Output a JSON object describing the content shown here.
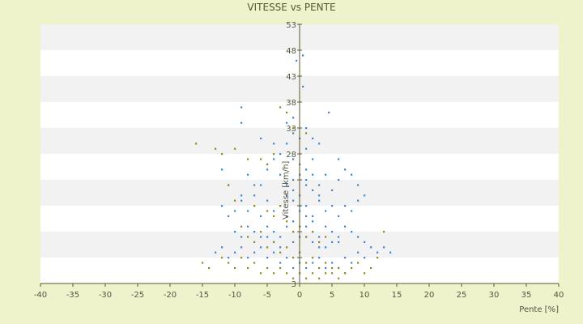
{
  "chart_data": {
    "type": "scatter",
    "title": "VITESSE vs PENTE",
    "xlabel": "Pente [%]",
    "ylabel": "Vitesse [km/h]",
    "xlim": [
      -40,
      40
    ],
    "ylim": [
      3,
      53
    ],
    "x_ticks": [
      -40,
      -35,
      -30,
      -25,
      -20,
      -15,
      -10,
      -5,
      0,
      5,
      10,
      15,
      20,
      25,
      30,
      35,
      40
    ],
    "y_ticks": [
      3,
      8,
      13,
      18,
      23,
      28,
      33,
      38,
      43,
      48,
      53
    ],
    "y_tick_labels": [
      "3",
      "",
      "",
      "",
      "",
      "28",
      "33",
      "38",
      "43",
      "48",
      "53"
    ],
    "grid": "horizontal-bands",
    "legend": "none",
    "colors": {
      "background": "#eef3cc",
      "plot_band_light": "#ffffff",
      "plot_band_dark": "#f2f2f2",
      "axis": "#5a5a2a",
      "series_blue": "#3a87d0",
      "series_olive": "#8c8c1a"
    },
    "series": [
      {
        "color": "#3a87d0",
        "points": [
          [
            -0.5,
            46
          ],
          [
            0.5,
            47
          ],
          [
            0.5,
            41
          ],
          [
            -9,
            37
          ],
          [
            -9,
            34
          ],
          [
            4.5,
            36
          ],
          [
            1,
            29
          ],
          [
            0,
            31
          ],
          [
            -1,
            32
          ],
          [
            -2,
            30
          ],
          [
            2,
            27
          ],
          [
            -3,
            28
          ],
          [
            -6,
            31
          ],
          [
            -4,
            27
          ],
          [
            -12,
            25
          ],
          [
            -11,
            22
          ],
          [
            -8,
            24
          ],
          [
            -7,
            20
          ],
          [
            -6,
            22
          ],
          [
            -5,
            25
          ],
          [
            -3,
            24
          ],
          [
            -2,
            22
          ],
          [
            -1,
            21
          ],
          [
            0,
            20
          ],
          [
            1,
            23
          ],
          [
            2,
            21
          ],
          [
            3,
            22
          ],
          [
            4,
            24
          ],
          [
            5,
            21
          ],
          [
            6,
            23
          ],
          [
            8,
            24
          ],
          [
            9,
            22
          ],
          [
            -12,
            18
          ],
          [
            -11,
            16
          ],
          [
            -10,
            17
          ],
          [
            -9,
            19
          ],
          [
            -8,
            17
          ],
          [
            -7,
            18
          ],
          [
            -6,
            16
          ],
          [
            -5,
            19
          ],
          [
            -4,
            17
          ],
          [
            -3,
            18
          ],
          [
            -2,
            16
          ],
          [
            -1,
            19
          ],
          [
            0,
            17
          ],
          [
            1,
            18
          ],
          [
            2,
            16
          ],
          [
            3,
            19
          ],
          [
            4,
            17
          ],
          [
            5,
            18
          ],
          [
            6,
            16
          ],
          [
            7,
            18
          ],
          [
            8,
            17
          ],
          [
            9,
            19
          ],
          [
            -10,
            13
          ],
          [
            -9,
            12
          ],
          [
            -8,
            14
          ],
          [
            -7,
            13
          ],
          [
            -6,
            12
          ],
          [
            -5,
            14
          ],
          [
            -4,
            13
          ],
          [
            -3,
            12
          ],
          [
            -2,
            14
          ],
          [
            -1,
            13
          ],
          [
            0,
            12
          ],
          [
            1,
            14
          ],
          [
            2,
            13
          ],
          [
            3,
            12
          ],
          [
            4,
            14
          ],
          [
            5,
            13
          ],
          [
            6,
            12
          ],
          [
            7,
            14
          ],
          [
            8,
            13
          ],
          [
            9,
            12
          ],
          [
            10,
            11
          ],
          [
            11,
            10
          ],
          [
            12,
            9
          ],
          [
            13,
            10
          ],
          [
            14,
            9
          ],
          [
            -13,
            9
          ],
          [
            -12,
            10
          ],
          [
            -11,
            8
          ],
          [
            -10,
            9
          ],
          [
            -9,
            10
          ],
          [
            -8,
            8
          ],
          [
            -7,
            9
          ],
          [
            -6,
            10
          ],
          [
            -5,
            8
          ],
          [
            -4,
            9
          ],
          [
            -3,
            7
          ],
          [
            -2,
            8
          ],
          [
            -1,
            6
          ],
          [
            0,
            7
          ],
          [
            1,
            6
          ],
          [
            2,
            7
          ],
          [
            3,
            8
          ],
          [
            4,
            6
          ],
          [
            5,
            7
          ],
          [
            6,
            6
          ],
          [
            7,
            8
          ],
          [
            8,
            7
          ],
          [
            9,
            9
          ],
          [
            10,
            8
          ],
          [
            -2,
            34
          ],
          [
            1,
            33
          ],
          [
            -1,
            35
          ],
          [
            2,
            31
          ],
          [
            3,
            30
          ],
          [
            -4,
            30
          ],
          [
            -5,
            26
          ],
          [
            6,
            27
          ],
          [
            7,
            25
          ],
          [
            -7,
            22
          ],
          [
            -9,
            20
          ],
          [
            10,
            20
          ],
          [
            -1,
            27
          ],
          [
            0,
            26
          ],
          [
            1,
            25
          ],
          [
            0,
            24
          ],
          [
            -1,
            23
          ],
          [
            2,
            24
          ],
          [
            1,
            22
          ],
          [
            -2,
            20
          ],
          [
            3,
            20
          ],
          [
            0,
            18
          ],
          [
            1,
            16
          ],
          [
            -1,
            15
          ],
          [
            2,
            15
          ],
          [
            0,
            14
          ],
          [
            1,
            12
          ],
          [
            -1,
            11
          ],
          [
            2,
            11
          ],
          [
            3,
            10
          ],
          [
            -3,
            10
          ],
          [
            4,
            10
          ],
          [
            -4,
            11
          ],
          [
            5,
            11
          ],
          [
            -5,
            12
          ],
          [
            6,
            11
          ]
        ]
      },
      {
        "color": "#8c8c1a",
        "points": [
          [
            -16,
            30
          ],
          [
            -13,
            29
          ],
          [
            -12,
            28
          ],
          [
            -10,
            29
          ],
          [
            -8,
            27
          ],
          [
            -6,
            27
          ],
          [
            -5,
            26
          ],
          [
            -4,
            28
          ],
          [
            -3,
            37
          ],
          [
            -2,
            36
          ],
          [
            -1,
            33
          ],
          [
            1,
            32
          ],
          [
            -11,
            22
          ],
          [
            -10,
            19
          ],
          [
            -7,
            18
          ],
          [
            -5,
            17
          ],
          [
            -4,
            16
          ],
          [
            -3,
            18
          ],
          [
            -2,
            15
          ],
          [
            -1,
            13
          ],
          [
            0,
            14
          ],
          [
            1,
            12
          ],
          [
            2,
            13
          ],
          [
            3,
            11
          ],
          [
            4,
            12
          ],
          [
            -9,
            14
          ],
          [
            -8,
            12
          ],
          [
            -7,
            11
          ],
          [
            -6,
            13
          ],
          [
            -5,
            10
          ],
          [
            -4,
            11
          ],
          [
            -3,
            9
          ],
          [
            -2,
            10
          ],
          [
            -1,
            8
          ],
          [
            0,
            9
          ],
          [
            1,
            7
          ],
          [
            2,
            8
          ],
          [
            3,
            6
          ],
          [
            4,
            7
          ],
          [
            5,
            5
          ],
          [
            6,
            6
          ],
          [
            7,
            5
          ],
          [
            8,
            6
          ],
          [
            9,
            7
          ],
          [
            10,
            5
          ],
          [
            11,
            6
          ],
          [
            12,
            8
          ],
          [
            13,
            13
          ],
          [
            -14,
            6
          ],
          [
            -15,
            7
          ],
          [
            -12,
            8
          ],
          [
            -11,
            7
          ],
          [
            -10,
            6
          ],
          [
            -9,
            8
          ],
          [
            -8,
            6
          ],
          [
            -7,
            7
          ],
          [
            -6,
            5
          ],
          [
            -5,
            6
          ],
          [
            -4,
            5
          ],
          [
            -3,
            6
          ],
          [
            -2,
            5
          ],
          [
            -1,
            4
          ],
          [
            0,
            5
          ],
          [
            1,
            4
          ],
          [
            2,
            5
          ],
          [
            3,
            4
          ],
          [
            4,
            5
          ],
          [
            5,
            6
          ],
          [
            6,
            4
          ],
          [
            7,
            5
          ]
        ]
      }
    ]
  }
}
